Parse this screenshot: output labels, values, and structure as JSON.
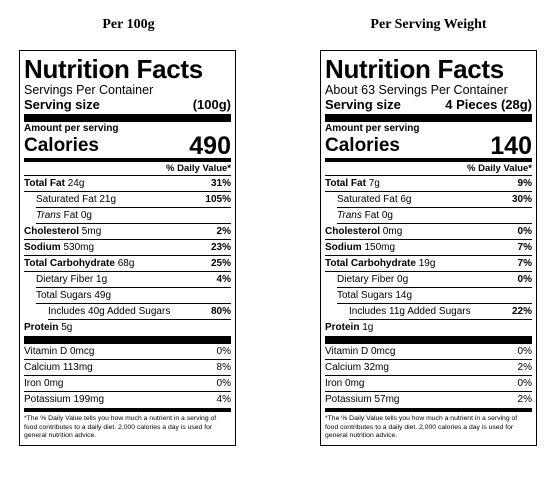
{
  "headings": {
    "left": "Per 100g",
    "right": "Per Serving Weight"
  },
  "labels": [
    {
      "title": "Nutrition Facts",
      "servings": "Servings Per Container",
      "serving_size_label": "Serving size",
      "serving_size_value": "(100g)",
      "amount_per_serving": "Amount per serving",
      "calories_label": "Calories",
      "calories_value": "490",
      "dv_header": "% Daily Value*",
      "nutrients": [
        {
          "label": "Total Fat",
          "amount": "24g",
          "dv": "31%"
        },
        {
          "label": "Saturated Fat",
          "amount": "21g",
          "dv": "105%"
        },
        {
          "label": "Trans",
          "amount": "Fat 0g",
          "dv": ""
        },
        {
          "label": "Cholesterol",
          "amount": "5mg",
          "dv": "2%"
        },
        {
          "label": "Sodium",
          "amount": "530mg",
          "dv": "23%"
        },
        {
          "label": "Total Carbohydrate",
          "amount": "68g",
          "dv": "25%"
        },
        {
          "label": "Dietary Fiber",
          "amount": "1g",
          "dv": "4%"
        },
        {
          "label": "Total Sugars",
          "amount": "49g",
          "dv": ""
        },
        {
          "label": "Includes",
          "amount": "40g Added Sugars",
          "dv": "80%"
        },
        {
          "label": "Protein",
          "amount": "5g",
          "dv": ""
        }
      ],
      "vitamins": [
        {
          "label": "Vitamin D 0mcg",
          "dv": "0%"
        },
        {
          "label": "Calcium 113mg",
          "dv": "8%"
        },
        {
          "label": "Iron 0mg",
          "dv": "0%"
        },
        {
          "label": "Potassium 199mg",
          "dv": "4%"
        }
      ],
      "footnote": "*The % Daily Value tells you how much a nutrient in a serving of food contributes to a daily diet. 2,000 calories a day is used for general nutrition advice."
    },
    {
      "title": "Nutrition Facts",
      "servings": "About 63 Servings Per Container",
      "serving_size_label": "Serving size",
      "serving_size_value": "4 Pieces (28g)",
      "amount_per_serving": "Amount per serving",
      "calories_label": "Calories",
      "calories_value": "140",
      "dv_header": "% Daily Value*",
      "nutrients": [
        {
          "label": "Total Fat",
          "amount": "7g",
          "dv": "9%"
        },
        {
          "label": "Saturated Fat",
          "amount": "6g",
          "dv": "30%"
        },
        {
          "label": "Trans",
          "amount": "Fat 0g",
          "dv": ""
        },
        {
          "label": "Cholesterol",
          "amount": "0mg",
          "dv": "0%"
        },
        {
          "label": "Sodium",
          "amount": "150mg",
          "dv": "7%"
        },
        {
          "label": "Total Carbohydrate",
          "amount": "19g",
          "dv": "7%"
        },
        {
          "label": "Dietary Fiber",
          "amount": "0g",
          "dv": "0%"
        },
        {
          "label": "Total Sugars",
          "amount": "14g",
          "dv": ""
        },
        {
          "label": "Includes",
          "amount": "11g Added Sugars",
          "dv": "22%"
        },
        {
          "label": "Protein",
          "amount": "1g",
          "dv": ""
        }
      ],
      "vitamins": [
        {
          "label": "Vitamin D 0mcg",
          "dv": "0%"
        },
        {
          "label": "Calcium 32mg",
          "dv": "2%"
        },
        {
          "label": "Iron 0mg",
          "dv": "0%"
        },
        {
          "label": "Potassium 57mg",
          "dv": "2%"
        }
      ],
      "footnote": "*The % Daily Value tells you how much a nutrient in a serving of food contributes to a daily diet. 2,000 calories a day is used for general nutrition advice."
    }
  ]
}
